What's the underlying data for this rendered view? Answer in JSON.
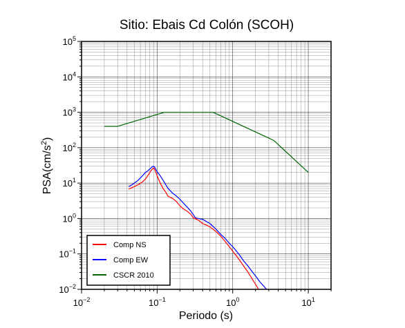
{
  "chart_data": {
    "type": "line",
    "title": "Sitio: Ebais Cd Colón (SCOH)",
    "xlabel": "Periodo (s)",
    "ylabel": {
      "base": "PSA(cm/s",
      "exp": "2",
      "close": ")"
    },
    "x_scale": "log",
    "y_scale": "log",
    "xlim": [
      0.01,
      20
    ],
    "ylim": [
      0.01,
      100000
    ],
    "grid": true,
    "legend_position": "bottom-left",
    "x_ticks": [
      {
        "value": 0.01,
        "base": "10",
        "exp": "−2"
      },
      {
        "value": 0.1,
        "base": "10",
        "exp": "−1"
      },
      {
        "value": 1,
        "base": "10",
        "exp": "0"
      },
      {
        "value": 10,
        "base": "10",
        "exp": "1"
      }
    ],
    "y_ticks": [
      {
        "value": 0.01,
        "base": "10",
        "exp": "−2"
      },
      {
        "value": 0.1,
        "base": "10",
        "exp": "−1"
      },
      {
        "value": 1,
        "base": "10",
        "exp": "0"
      },
      {
        "value": 10,
        "base": "10",
        "exp": "1"
      },
      {
        "value": 100,
        "base": "10",
        "exp": "2"
      },
      {
        "value": 1000,
        "base": "10",
        "exp": "3"
      },
      {
        "value": 10000,
        "base": "10",
        "exp": "4"
      },
      {
        "value": 100000,
        "base": "10",
        "exp": "5"
      }
    ],
    "series": [
      {
        "name": "Comp NS",
        "color": "#ff0000",
        "points": [
          [
            0.042,
            6.8
          ],
          [
            0.045,
            7.2
          ],
          [
            0.05,
            8
          ],
          [
            0.056,
            9
          ],
          [
            0.063,
            10.5
          ],
          [
            0.07,
            13
          ],
          [
            0.075,
            16
          ],
          [
            0.08,
            20
          ],
          [
            0.085,
            24
          ],
          [
            0.09,
            27
          ],
          [
            0.094,
            23
          ],
          [
            0.1,
            16
          ],
          [
            0.11,
            10
          ],
          [
            0.12,
            7
          ],
          [
            0.13,
            5.5
          ],
          [
            0.14,
            4.2
          ],
          [
            0.16,
            3.7
          ],
          [
            0.18,
            3
          ],
          [
            0.2,
            2.3
          ],
          [
            0.22,
            1.9
          ],
          [
            0.25,
            1.6
          ],
          [
            0.28,
            1.3
          ],
          [
            0.3,
            1.05
          ],
          [
            0.35,
            0.9
          ],
          [
            0.4,
            0.72
          ],
          [
            0.45,
            0.65
          ],
          [
            0.5,
            0.58
          ],
          [
            0.6,
            0.43
          ],
          [
            0.7,
            0.31
          ],
          [
            0.8,
            0.22
          ],
          [
            0.9,
            0.16
          ],
          [
            1,
            0.12
          ],
          [
            1.2,
            0.072
          ],
          [
            1.4,
            0.045
          ],
          [
            1.6,
            0.03
          ],
          [
            1.8,
            0.02
          ],
          [
            2.0,
            0.014
          ],
          [
            2.2,
            0.01
          ]
        ]
      },
      {
        "name": "Comp EW",
        "color": "#0000ff",
        "points": [
          [
            0.042,
            8
          ],
          [
            0.045,
            8.6
          ],
          [
            0.05,
            10
          ],
          [
            0.056,
            12
          ],
          [
            0.063,
            15.5
          ],
          [
            0.07,
            20
          ],
          [
            0.075,
            22
          ],
          [
            0.08,
            25
          ],
          [
            0.085,
            28
          ],
          [
            0.088,
            30
          ],
          [
            0.092,
            29
          ],
          [
            0.1,
            21
          ],
          [
            0.11,
            16
          ],
          [
            0.12,
            12
          ],
          [
            0.13,
            9
          ],
          [
            0.14,
            7
          ],
          [
            0.16,
            5.2
          ],
          [
            0.18,
            4.3
          ],
          [
            0.2,
            3.5
          ],
          [
            0.22,
            2.8
          ],
          [
            0.25,
            2.1
          ],
          [
            0.28,
            1.6
          ],
          [
            0.3,
            1.3
          ],
          [
            0.32,
            1.05
          ],
          [
            0.35,
            1.0
          ],
          [
            0.4,
            0.95
          ],
          [
            0.45,
            0.82
          ],
          [
            0.5,
            0.72
          ],
          [
            0.6,
            0.5
          ],
          [
            0.7,
            0.35
          ],
          [
            0.8,
            0.27
          ],
          [
            0.9,
            0.2
          ],
          [
            1,
            0.16
          ],
          [
            1.2,
            0.1
          ],
          [
            1.4,
            0.063
          ],
          [
            1.6,
            0.045
          ],
          [
            1.8,
            0.032
          ],
          [
            2.0,
            0.024
          ],
          [
            2.3,
            0.016
          ],
          [
            2.6,
            0.012
          ],
          [
            2.8,
            0.01
          ]
        ]
      },
      {
        "name": "CSCR 2010",
        "color": "#006400",
        "points": [
          [
            0.02,
            400
          ],
          [
            0.03,
            400
          ],
          [
            0.125,
            1000
          ],
          [
            0.55,
            1000
          ],
          [
            3.5,
            160
          ],
          [
            10,
            20
          ]
        ]
      }
    ]
  }
}
